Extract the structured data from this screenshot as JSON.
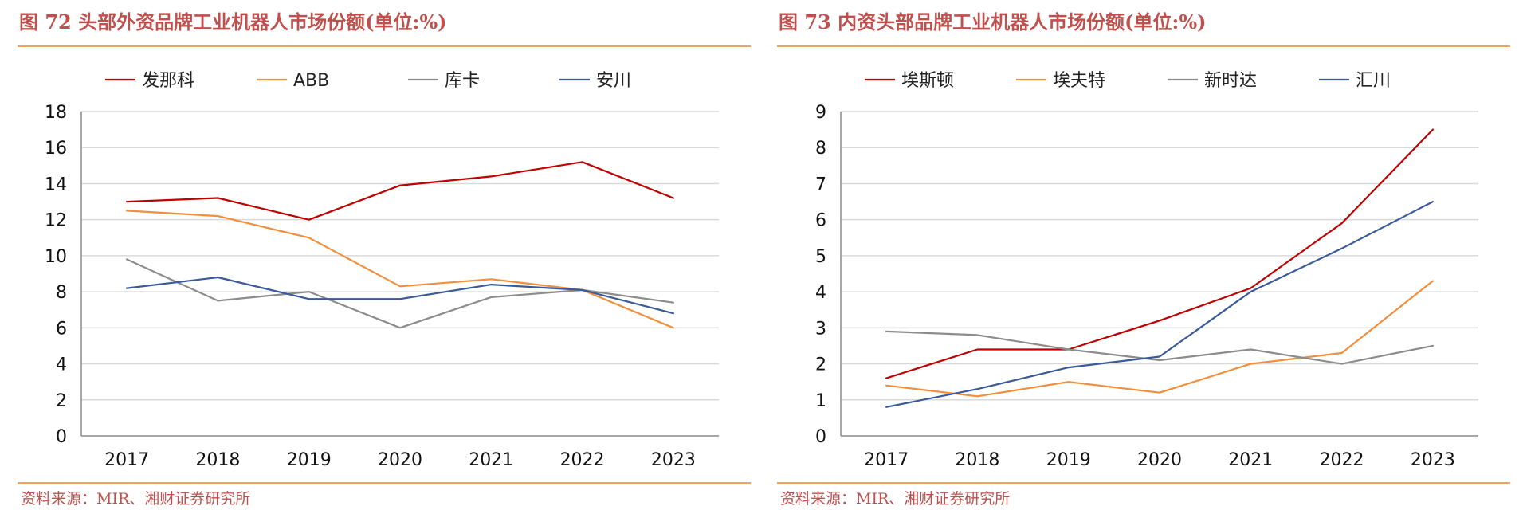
{
  "panels": [
    {
      "title": "图 72 头部外资品牌工业机器人市场份额(单位:%)",
      "source": "资料来源：MIR、湘财证券研究所"
    },
    {
      "title": "图 73 内资头部品牌工业机器人市场份额(单位:%)",
      "source": "资料来源：MIR、湘财证券研究所"
    }
  ],
  "chart_data": [
    {
      "type": "line",
      "title": "",
      "xlabel": "",
      "ylabel": "",
      "categories": [
        "2017",
        "2018",
        "2019",
        "2020",
        "2021",
        "2022",
        "2023"
      ],
      "ylim": [
        0,
        18
      ],
      "yticks": [
        0,
        2,
        4,
        6,
        8,
        10,
        12,
        14,
        16,
        18
      ],
      "grid": "horizontal",
      "legend_position": "top",
      "series": [
        {
          "name": "发那科",
          "color": "#c00000",
          "values": [
            13.0,
            13.2,
            12.0,
            13.9,
            14.4,
            15.2,
            13.2
          ]
        },
        {
          "name": "ABB",
          "color": "#f28e3c",
          "values": [
            12.5,
            12.2,
            11.0,
            8.3,
            8.7,
            8.1,
            6.0
          ]
        },
        {
          "name": "库卡",
          "color": "#8c8c8c",
          "values": [
            9.8,
            7.5,
            8.0,
            6.0,
            7.7,
            8.1,
            7.4
          ]
        },
        {
          "name": "安川",
          "color": "#3a5a9a",
          "values": [
            8.2,
            8.8,
            7.6,
            7.6,
            8.4,
            8.1,
            6.8
          ]
        }
      ]
    },
    {
      "type": "line",
      "title": "",
      "xlabel": "",
      "ylabel": "",
      "categories": [
        "2017",
        "2018",
        "2019",
        "2020",
        "2021",
        "2022",
        "2023"
      ],
      "ylim": [
        0,
        9
      ],
      "yticks": [
        0,
        1,
        2,
        3,
        4,
        5,
        6,
        7,
        8,
        9
      ],
      "grid": "horizontal",
      "legend_position": "top",
      "series": [
        {
          "name": "埃斯顿",
          "color": "#c00000",
          "values": [
            1.6,
            2.4,
            2.4,
            3.2,
            4.1,
            5.9,
            8.5
          ]
        },
        {
          "name": "埃夫特",
          "color": "#f28e3c",
          "values": [
            1.4,
            1.1,
            1.5,
            1.2,
            2.0,
            2.3,
            4.3
          ]
        },
        {
          "name": "新时达",
          "color": "#8c8c8c",
          "values": [
            2.9,
            2.8,
            2.4,
            2.1,
            2.4,
            2.0,
            2.5
          ]
        },
        {
          "name": "汇川",
          "color": "#3a5a9a",
          "values": [
            0.8,
            1.3,
            1.9,
            2.2,
            4.0,
            5.2,
            6.5
          ]
        }
      ]
    }
  ]
}
